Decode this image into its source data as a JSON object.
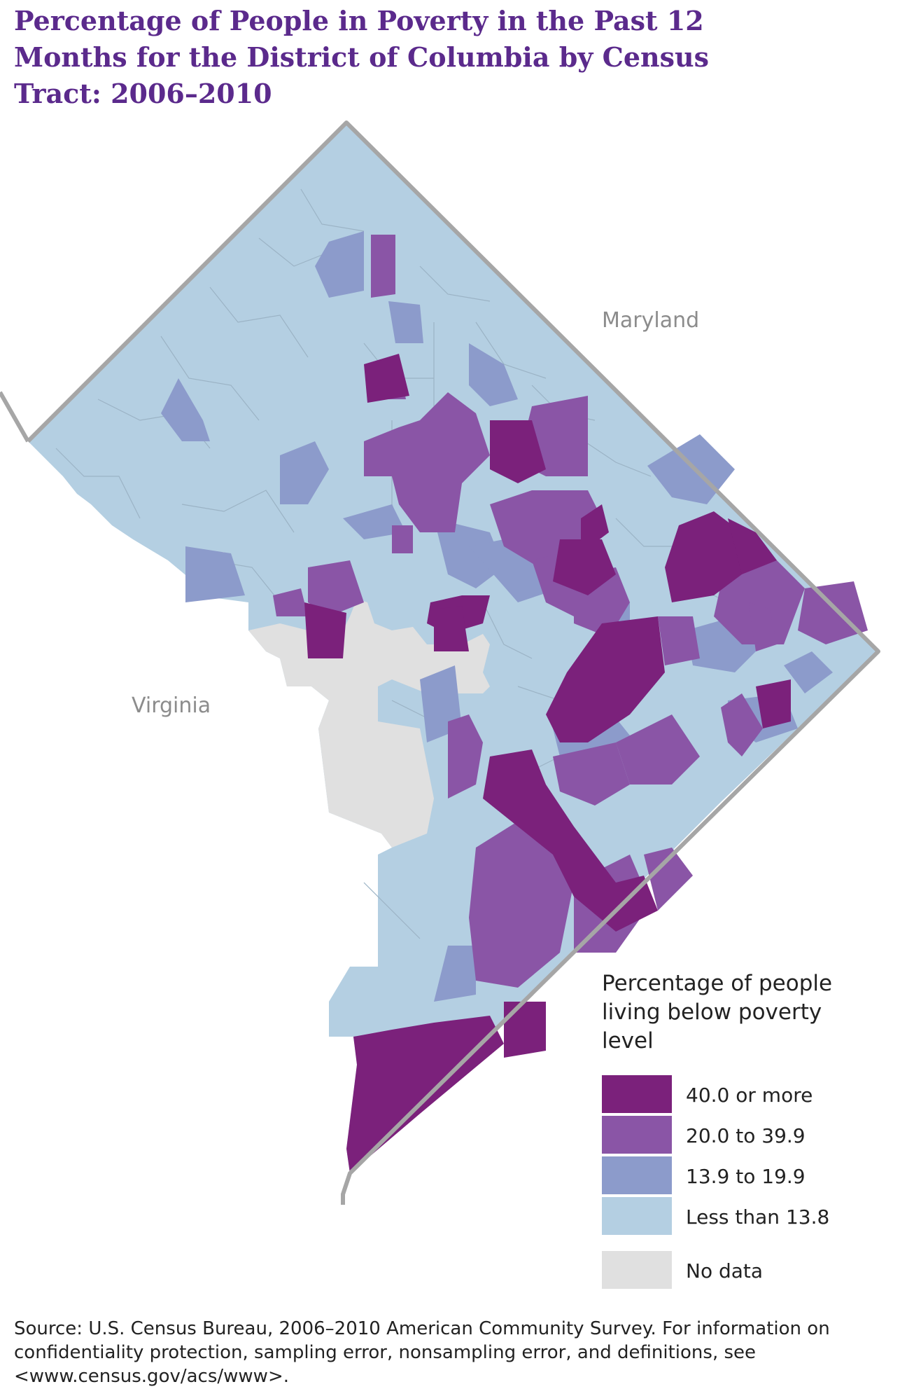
{
  "title": "Percentage of People in Poverty in the Past 12 Months for the District of Columbia by Census Tract: 2006–2010",
  "map": {
    "labels": {
      "maryland": "Maryland",
      "virginia": "Virginia"
    },
    "colors": {
      "very_high": "#7b217b",
      "high": "#8a55a6",
      "medium": "#8c9bcb",
      "low": "#b4cfe2",
      "no_data": "#e0e0e0",
      "border": "#a6a6a6",
      "tract_line": "#9bb3c5"
    }
  },
  "legend": {
    "title": "Percentage of people living below poverty level",
    "items": [
      {
        "label": "40.0 or more",
        "color": "#7b217b"
      },
      {
        "label": "20.0 to 39.9",
        "color": "#8a55a6"
      },
      {
        "label": "13.9 to 19.9",
        "color": "#8c9bcb"
      },
      {
        "label": "Less than 13.8",
        "color": "#b4cfe2"
      },
      {
        "label": "No data",
        "color": "#e0e0e0"
      }
    ]
  },
  "source": "Source: U.S. Census Bureau, 2006–2010 American Community Survey. For information on confidentiality protection, sampling error, nonsampling error, and definitions, see <www.census.gov/acs/www>."
}
